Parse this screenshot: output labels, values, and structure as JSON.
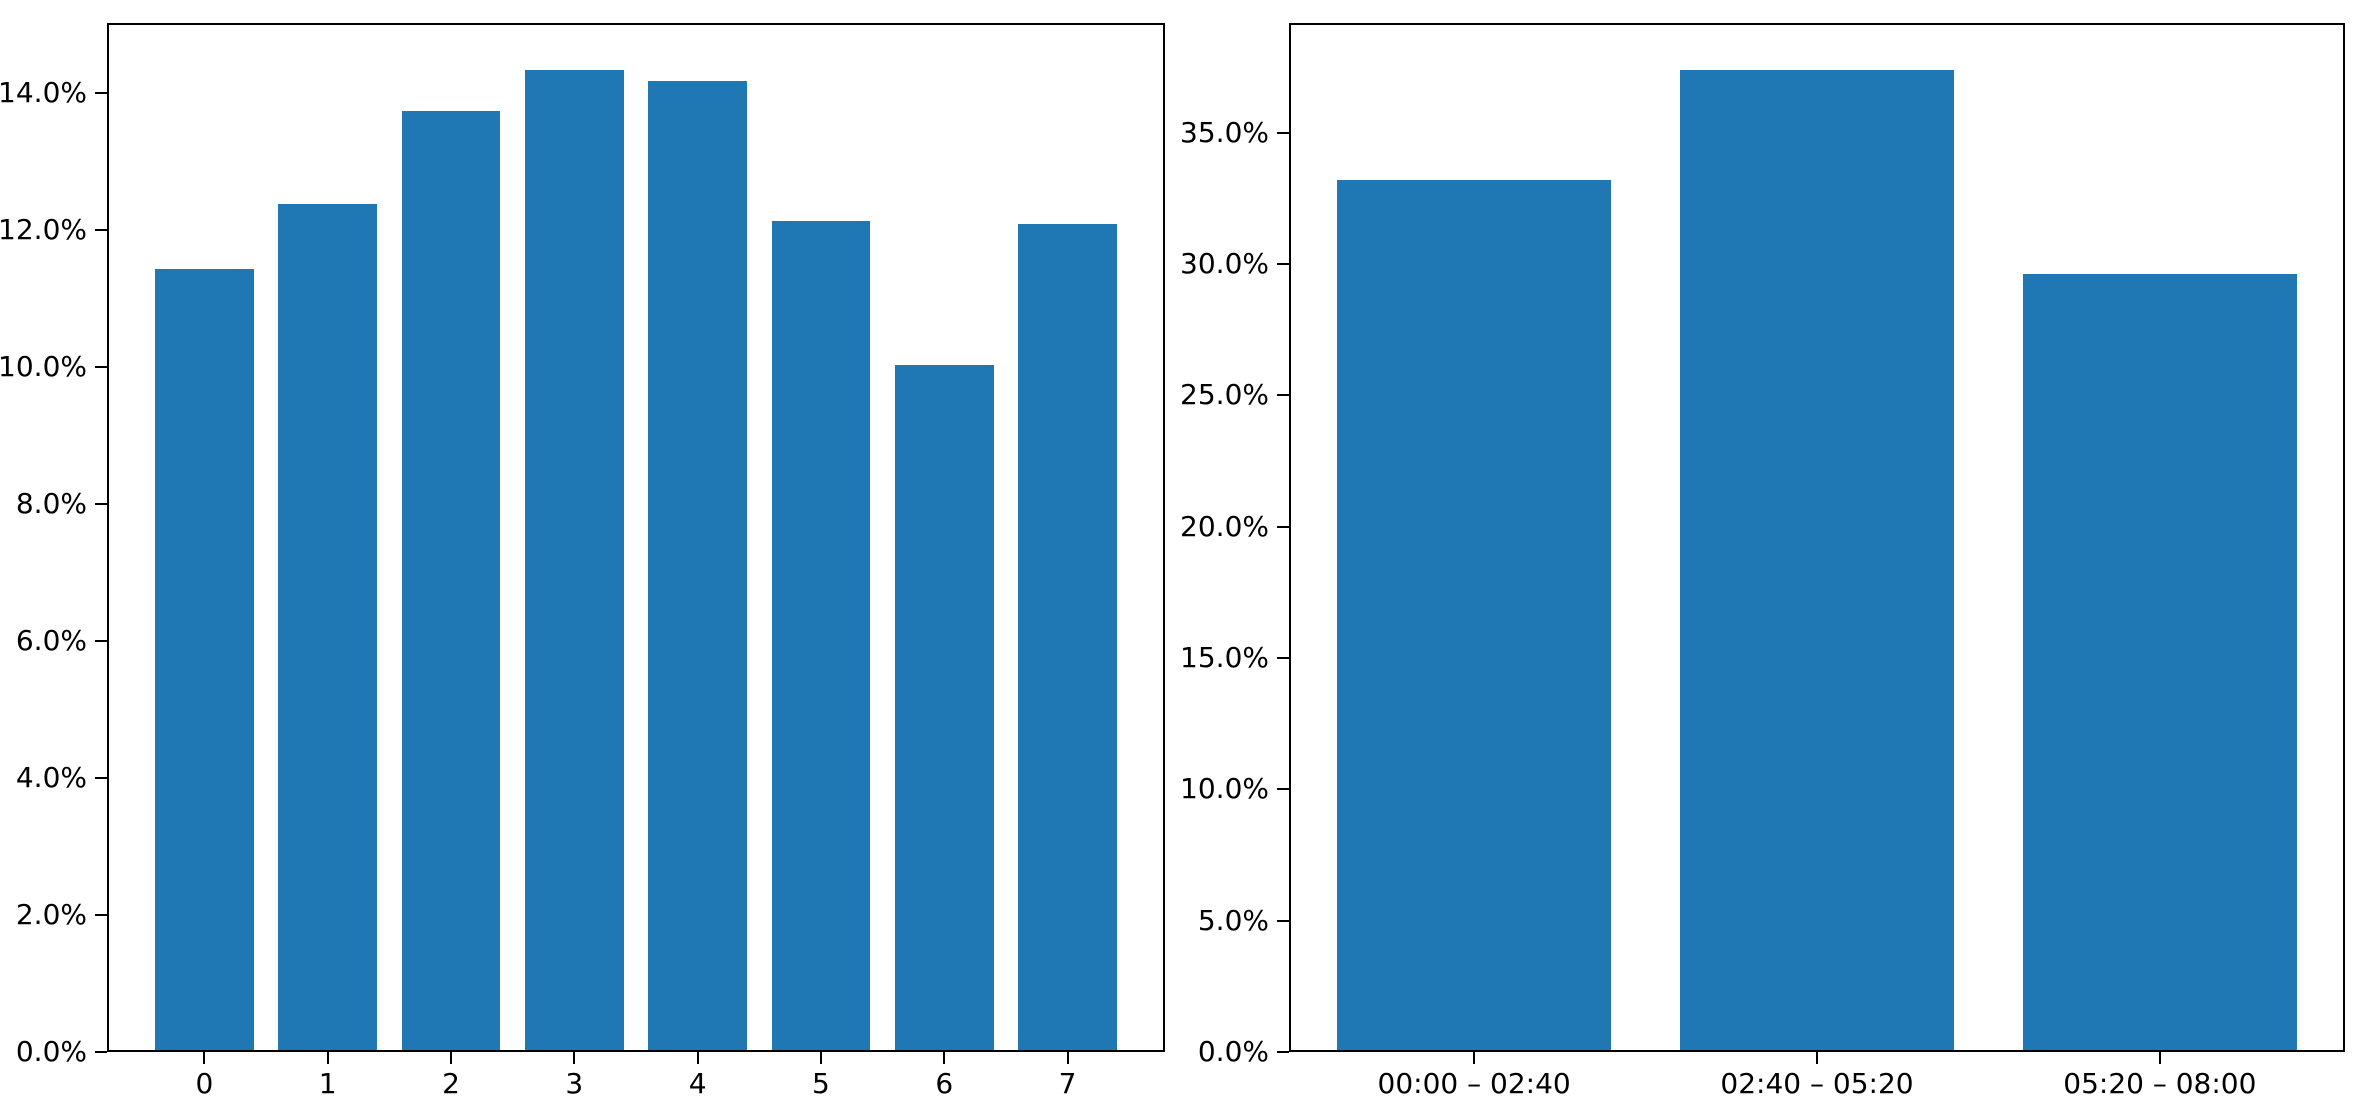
{
  "figure": {
    "background_color": "#ffffff",
    "axis_color": "#000000",
    "text_color": "#000000"
  },
  "chart_data": [
    {
      "type": "bar",
      "title": "",
      "xlabel": "",
      "ylabel": "",
      "categories": [
        "0",
        "1",
        "2",
        "3",
        "4",
        "5",
        "6",
        "7"
      ],
      "values": [
        11.4,
        12.35,
        13.7,
        14.3,
        14.15,
        12.1,
        10.0,
        12.05
      ],
      "value_unit": "%",
      "ylim": [
        0,
        15.02
      ],
      "yticks": [
        0,
        2,
        4,
        6,
        8,
        10,
        12,
        14
      ],
      "ytick_labels": [
        "0.0%",
        "2.0%",
        "4.0%",
        "6.0%",
        "8.0%",
        "10.0%",
        "12.0%",
        "14.0%"
      ],
      "bar_color": "#1f77b4",
      "grid": false,
      "legend": null
    },
    {
      "type": "bar",
      "title": "",
      "xlabel": "",
      "ylabel": "",
      "categories": [
        "00:00 – 02:40",
        "02:40 – 05:20",
        "05:20 – 08:00"
      ],
      "values": [
        33.1,
        37.3,
        29.55
      ],
      "value_unit": "%",
      "ylim": [
        0,
        39.17
      ],
      "yticks": [
        0,
        5,
        10,
        15,
        20,
        25,
        30,
        35
      ],
      "ytick_labels": [
        "0.0%",
        "5.0%",
        "10.0%",
        "15.0%",
        "20.0%",
        "25.0%",
        "30.0%",
        "35.0%"
      ],
      "bar_color": "#1f77b4",
      "grid": false,
      "legend": null
    }
  ]
}
